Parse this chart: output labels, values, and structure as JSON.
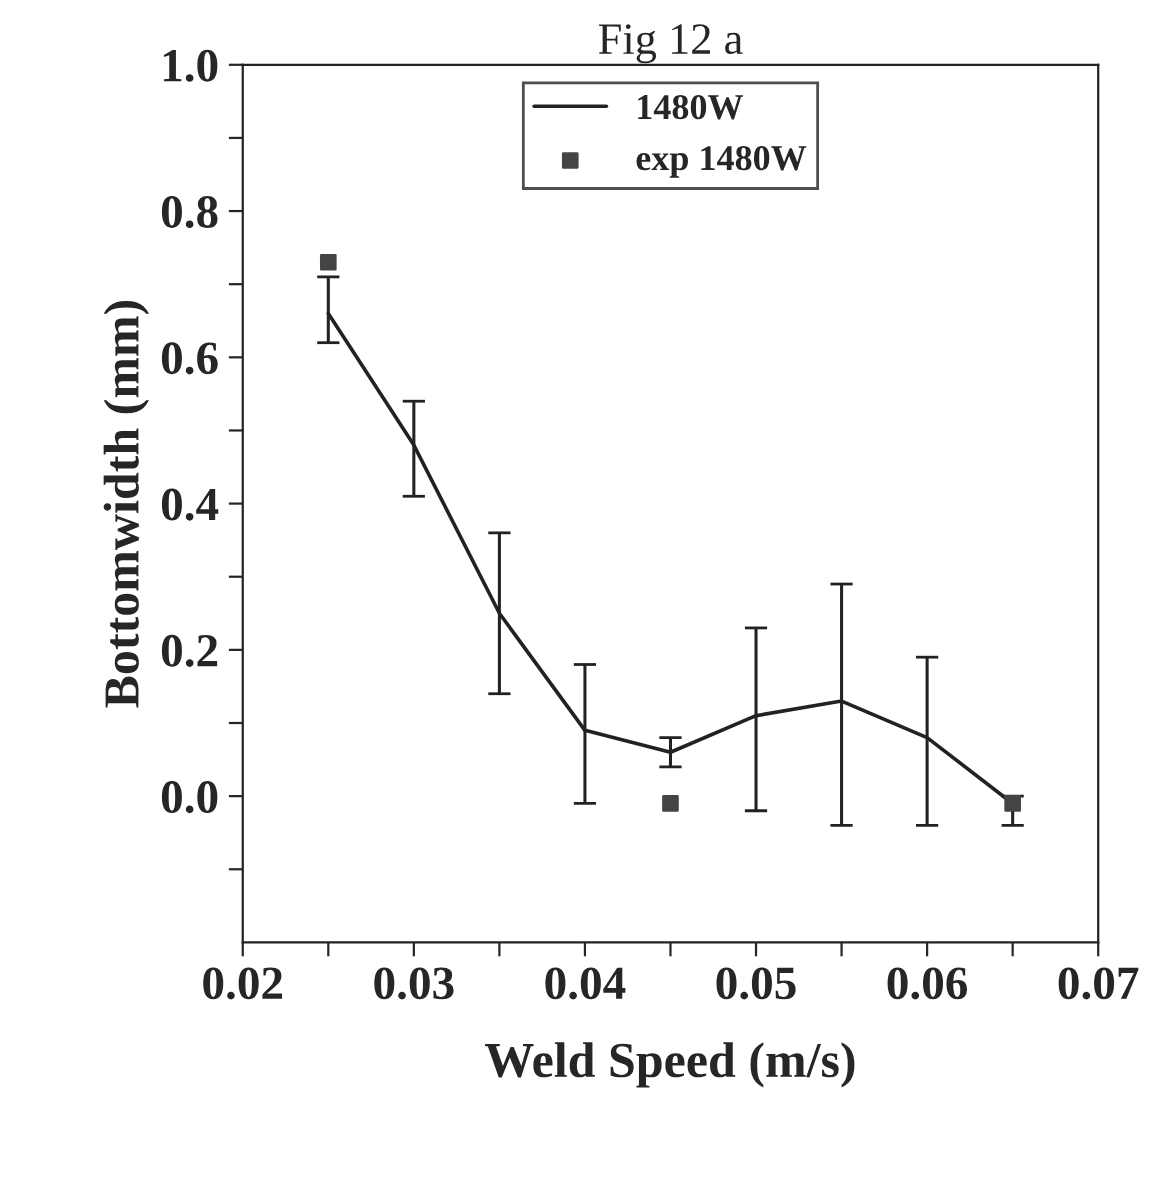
{
  "chart_data": {
    "type": "line",
    "title": "Fig 12 a",
    "xlabel": "Weld Speed (m/s)",
    "ylabel": "Bottomwidth (mm)",
    "xlim": [
      0.02,
      0.07
    ],
    "xticks": [
      0.02,
      {
        "value": 0.025,
        "label": null
      },
      0.03,
      {
        "value": 0.035,
        "label": null
      },
      0.04,
      {
        "value": 0.045,
        "label": null
      },
      0.05,
      {
        "value": 0.055,
        "label": null
      },
      0.06,
      {
        "value": 0.065,
        "label": null
      },
      0.07
    ],
    "ylim": [
      -0.2,
      1.0
    ],
    "yticks": [
      {
        "value": -0.1,
        "label": null
      },
      {
        "value": 0,
        "label": "0.0"
      },
      {
        "value": 0.1,
        "label": null
      },
      0.2,
      {
        "value": 0.3,
        "label": null
      },
      0.4,
      {
        "value": 0.5,
        "label": null
      },
      0.6,
      {
        "value": 0.7,
        "label": null
      },
      0.8,
      {
        "value": 0.9,
        "label": null
      },
      {
        "value": 1.0,
        "label": "1.0"
      }
    ],
    "grid": false,
    "legend": "top",
    "series": [
      {
        "name": "1480W",
        "color": "#222222",
        "marker": "none",
        "line_style": "solid",
        "x": [
          0.025,
          0.03,
          0.035,
          0.04,
          0.045,
          0.05,
          0.055,
          0.06,
          0.065
        ],
        "values": [
          0.66,
          0.48,
          0.25,
          0.09,
          0.06,
          0.11,
          0.13,
          0.08,
          -0.01
        ],
        "errors": [
          [
            0.62,
            0.71
          ],
          [
            0.41,
            0.54
          ],
          [
            0.14,
            0.36
          ],
          [
            -0.01,
            0.18
          ],
          [
            0.04,
            0.08
          ],
          [
            -0.02,
            0.23
          ],
          [
            -0.04,
            0.29
          ],
          [
            -0.04,
            0.19
          ],
          [
            -0.04,
            0.0
          ]
        ]
      },
      {
        "name": "exp 1480W",
        "type": "scatter",
        "color": "#444444",
        "marker": "square",
        "x": [
          0.025,
          0.045,
          0.065
        ],
        "values": [
          0.73,
          -0.01,
          -0.01
        ]
      }
    ]
  }
}
